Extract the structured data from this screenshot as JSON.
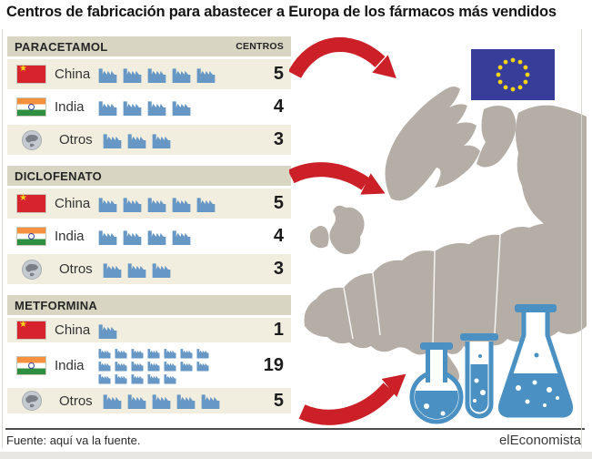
{
  "title": "Centros de fabricación para abastecer a Europa de los fármacos más vendidos",
  "table": {
    "centros_label": "CENTROS",
    "sections": [
      {
        "name": "PARACETAMOL",
        "rows": [
          {
            "label": "China",
            "flag": "china",
            "count": 5
          },
          {
            "label": "India",
            "flag": "india",
            "count": 4
          },
          {
            "label": "Otros",
            "flag": "globe",
            "count": 3
          }
        ]
      },
      {
        "name": "DICLOFENATO",
        "rows": [
          {
            "label": "China",
            "flag": "china",
            "count": 5
          },
          {
            "label": "India",
            "flag": "india",
            "count": 4
          },
          {
            "label": "Otros",
            "flag": "globe",
            "count": 3
          }
        ]
      },
      {
        "name": "METFORMINA",
        "rows": [
          {
            "label": "China",
            "flag": "china",
            "count": 1
          },
          {
            "label": "India",
            "flag": "india",
            "count": 19
          },
          {
            "label": "Otros",
            "flag": "globe",
            "count": 5
          }
        ]
      }
    ]
  },
  "footer": {
    "source": "Fuente: aquí va la fuente.",
    "brand": "elEconomista"
  },
  "icons": {
    "unit": "factory-icon",
    "otros": "globe-icon",
    "flags": [
      "china-flag",
      "india-flag"
    ],
    "right_side": [
      "eu-flag",
      "europe-map",
      "red-arrow-top",
      "red-arrow-middle",
      "red-arrow-bottom",
      "round-flask",
      "test-tube",
      "erlenmeyer-flask"
    ]
  },
  "colors": {
    "accent_red": "#cc2028",
    "factory_blue": "#6797c4",
    "flask_blue": "#4a90c2",
    "map_gray": "#b5aea6",
    "eu_blue": "#383d99",
    "star_yellow": "#f6d515",
    "row_beige": "#f1eee0",
    "header_bar": "#d8d5c3"
  },
  "chart_data": [
    {
      "type": "bar",
      "title": "PARACETAMOL",
      "categories": [
        "China",
        "India",
        "Otros"
      ],
      "values": [
        5,
        4,
        3
      ],
      "ylabel": "CENTROS",
      "legend_position": "none",
      "grid": false
    },
    {
      "type": "bar",
      "title": "DICLOFENATO",
      "categories": [
        "China",
        "India",
        "Otros"
      ],
      "values": [
        5,
        4,
        3
      ],
      "ylabel": "CENTROS",
      "legend_position": "none",
      "grid": false
    },
    {
      "type": "bar",
      "title": "METFORMINA",
      "categories": [
        "China",
        "India",
        "Otros"
      ],
      "values": [
        1,
        19,
        5
      ],
      "ylabel": "CENTROS",
      "legend_position": "none",
      "grid": false
    }
  ]
}
